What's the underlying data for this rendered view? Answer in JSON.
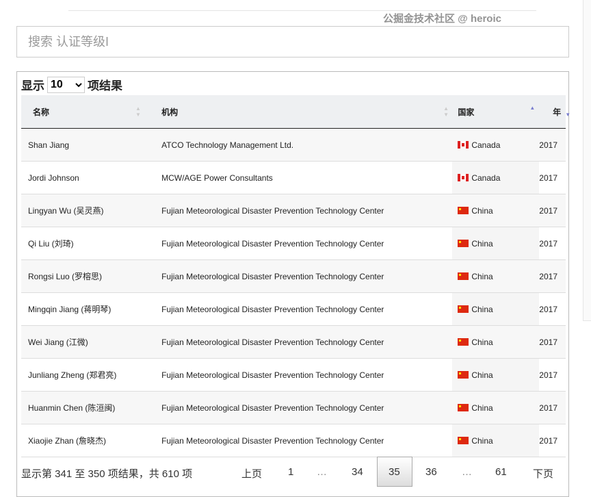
{
  "search": {
    "placeholder": "搜索 认证等级I"
  },
  "length": {
    "prefix": "显示",
    "value": "10",
    "suffix": "项结果"
  },
  "columns": [
    "名称",
    "机构",
    "国家",
    "年"
  ],
  "rows": [
    {
      "name": "Shan Jiang",
      "org": "ATCO Technology Management Ltd.",
      "country": "Canada",
      "flag": "canada-flag-icon",
      "year": "2017"
    },
    {
      "name": "Jordi Johnson",
      "org": "MCW/AGE Power Consultants",
      "country": "Canada",
      "flag": "canada-flag-icon",
      "year": "2017"
    },
    {
      "name": "Lingyan Wu (吴灵燕)",
      "org": "Fujian Meteorological Disaster Prevention Technology Center",
      "country": "China",
      "flag": "china-flag-icon",
      "year": "2017"
    },
    {
      "name": "Qi Liu (刘琦)",
      "org": "Fujian Meteorological Disaster Prevention Technology Center",
      "country": "China",
      "flag": "china-flag-icon",
      "year": "2017"
    },
    {
      "name": "Rongsi Luo (罗榕思)",
      "org": "Fujian Meteorological Disaster Prevention Technology Center",
      "country": "China",
      "flag": "china-flag-icon",
      "year": "2017"
    },
    {
      "name": "Mingqin Jiang (蒋明琴)",
      "org": "Fujian Meteorological Disaster Prevention Technology Center",
      "country": "China",
      "flag": "china-flag-icon",
      "year": "2017"
    },
    {
      "name": "Wei Jiang (江微)",
      "org": "Fujian Meteorological Disaster Prevention Technology Center",
      "country": "China",
      "flag": "china-flag-icon",
      "year": "2017"
    },
    {
      "name": "Junliang Zheng (郑君亮)",
      "org": "Fujian Meteorological Disaster Prevention Technology Center",
      "country": "China",
      "flag": "china-flag-icon",
      "year": "2017"
    },
    {
      "name": "Huanmin Chen (陈洹闽)",
      "org": "Fujian Meteorological Disaster Prevention Technology Center",
      "country": "China",
      "flag": "china-flag-icon",
      "year": "2017"
    },
    {
      "name": "Xiaojie Zhan (詹晓杰)",
      "org": "Fujian Meteorological Disaster Prevention Technology Center",
      "country": "China",
      "flag": "china-flag-icon",
      "year": "2017"
    }
  ],
  "info": "显示第 341 至 350 项结果，共 610 项",
  "pagination": {
    "prev": "上页",
    "pages": [
      "1",
      "…",
      "34",
      "35",
      "36",
      "…",
      "61"
    ],
    "active": "35",
    "next": "下页"
  },
  "watermark": "公掘金技术社区 @ heroic"
}
